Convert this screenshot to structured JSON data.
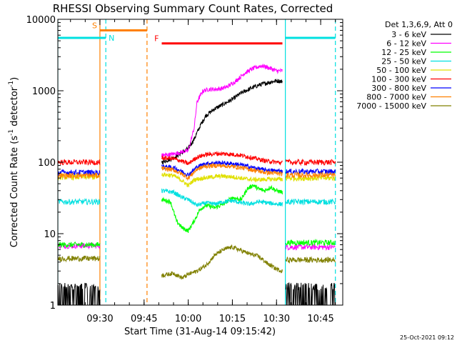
{
  "chart_data": {
    "type": "line",
    "title": "RHESSI Observing Summary Count Rates, Corrected",
    "xlabel": "Start Time (31-Aug-14 09:15:42)",
    "ylabel_main": "Corrected Count Rate (s",
    "ylabel_sup1": "-1",
    "ylabel_mid": " detector",
    "ylabel_sup2": "-1",
    "ylabel_end": ")",
    "footer": "25-Oct-2021 09:12",
    "legend_title": "Det 1,3,6,9, Att 0",
    "legend_position": "right",
    "y_scale": "log",
    "ylim": [
      1,
      10000
    ],
    "xlim": [
      "09:15:42",
      "10:52:30"
    ],
    "y_ticks": [
      {
        "value": 1,
        "label": "1"
      },
      {
        "value": 10,
        "label": "10"
      },
      {
        "value": 100,
        "label": "100"
      },
      {
        "value": 1000,
        "label": "1000"
      },
      {
        "value": 10000,
        "label": "10000"
      }
    ],
    "x_ticks": [
      {
        "value": "09:30",
        "label": "09:30"
      },
      {
        "value": "09:45",
        "label": "09:45"
      },
      {
        "value": "10:00",
        "label": "10:00"
      },
      {
        "value": "10:15",
        "label": "10:15"
      },
      {
        "value": "10:30",
        "label": "10:30"
      },
      {
        "value": "10:45",
        "label": "10:45"
      }
    ],
    "flags": [
      {
        "label": "S",
        "name": "saa",
        "start": "09:30:00",
        "end": "09:46:00",
        "level": 7000,
        "color": "#ff8000"
      },
      {
        "label": "N",
        "name": "night",
        "start": "09:15:42",
        "end": "09:32:00",
        "level": 5500,
        "color": "#00e0e0"
      },
      {
        "label": "F",
        "name": "flare",
        "start": "09:51:00",
        "end": "10:32:00",
        "level": 4600,
        "color": "#ff0000"
      },
      {
        "label": "",
        "name": "night-2",
        "start": "10:33:00",
        "end": "10:50:00",
        "level": 5500,
        "color": "#00e0e0"
      }
    ],
    "markers": [
      {
        "time": "09:15:42",
        "color": "#00e0e0",
        "style": "solid"
      },
      {
        "time": "09:30:00",
        "color": "#ff8000",
        "style": "solid"
      },
      {
        "time": "09:32:00",
        "color": "#00e0e0",
        "style": "dashed"
      },
      {
        "time": "09:46:00",
        "color": "#ff8000",
        "style": "dashed"
      },
      {
        "time": "10:33:00",
        "color": "#00e0e0",
        "style": "solid"
      },
      {
        "time": "10:50:00",
        "color": "#00e0e0",
        "style": "dashed"
      }
    ],
    "gaps": [
      [
        "09:30:00",
        "09:51:00"
      ],
      [
        "10:33:00",
        "10:33:00"
      ]
    ],
    "series": [
      {
        "name": "3 - 6 keV",
        "color": "#000000",
        "seg1": {
          "kind": "step",
          "level": 1.6
        },
        "pts": [
          [
            "09:51",
            100
          ],
          [
            "09:55",
            115
          ],
          [
            "10:00",
            155
          ],
          [
            "10:02",
            210
          ],
          [
            "10:04",
            320
          ],
          [
            "10:06",
            450
          ],
          [
            "10:09",
            560
          ],
          [
            "10:12",
            650
          ],
          [
            "10:15",
            760
          ],
          [
            "10:18",
            930
          ],
          [
            "10:21",
            1070
          ],
          [
            "10:24",
            1200
          ],
          [
            "10:27",
            1300
          ],
          [
            "10:30",
            1380
          ],
          [
            "10:32",
            1350
          ]
        ],
        "seg3": {
          "kind": "step",
          "level": 1.6
        }
      },
      {
        "name": "6 - 12 keV",
        "color": "#ff00ff",
        "seg1": {
          "kind": "flat",
          "level": 6.8
        },
        "pts": [
          [
            "09:51",
            125
          ],
          [
            "09:55",
            130
          ],
          [
            "09:58",
            140
          ],
          [
            "10:00",
            145
          ],
          [
            "10:02",
            300
          ],
          [
            "10:03",
            700
          ],
          [
            "10:05",
            1000
          ],
          [
            "10:07",
            1050
          ],
          [
            "10:09",
            1050
          ],
          [
            "10:11",
            1070
          ],
          [
            "10:13",
            1120
          ],
          [
            "10:16",
            1350
          ],
          [
            "10:19",
            1750
          ],
          [
            "10:22",
            2050
          ],
          [
            "10:25",
            2250
          ],
          [
            "10:28",
            2050
          ],
          [
            "10:30",
            1900
          ],
          [
            "10:32",
            1900
          ]
        ],
        "seg3": {
          "kind": "flat",
          "level": 6.5
        }
      },
      {
        "name": "12 - 25 keV",
        "color": "#00ff00",
        "seg1": {
          "kind": "flat",
          "level": 7.0
        },
        "pts": [
          [
            "09:51",
            30
          ],
          [
            "09:54",
            28
          ],
          [
            "09:56",
            15
          ],
          [
            "09:58",
            12
          ],
          [
            "10:00",
            11
          ],
          [
            "10:02",
            15
          ],
          [
            "10:04",
            22
          ],
          [
            "10:06",
            25
          ],
          [
            "10:09",
            23
          ],
          [
            "10:12",
            26
          ],
          [
            "10:15",
            32
          ],
          [
            "10:18",
            30
          ],
          [
            "10:20",
            42
          ],
          [
            "10:22",
            48
          ],
          [
            "10:24",
            42
          ],
          [
            "10:26",
            40
          ],
          [
            "10:28",
            45
          ],
          [
            "10:30",
            40
          ],
          [
            "10:32",
            38
          ]
        ],
        "seg3": {
          "kind": "flat",
          "level": 7.5
        }
      },
      {
        "name": "25 - 50 keV",
        "color": "#00e0e0",
        "seg1": {
          "kind": "flat",
          "level": 28
        },
        "pts": [
          [
            "09:51",
            40
          ],
          [
            "09:55",
            38
          ],
          [
            "09:58",
            32
          ],
          [
            "10:00",
            30
          ],
          [
            "10:03",
            25
          ],
          [
            "10:06",
            27
          ],
          [
            "10:09",
            26
          ],
          [
            "10:12",
            28
          ],
          [
            "10:15",
            29
          ],
          [
            "10:18",
            27
          ],
          [
            "10:21",
            26
          ],
          [
            "10:24",
            28
          ],
          [
            "10:27",
            27
          ],
          [
            "10:30",
            26
          ],
          [
            "10:32",
            26
          ]
        ],
        "seg3": {
          "kind": "flat",
          "level": 28
        }
      },
      {
        "name": "50 - 100 keV",
        "color": "#e0e000",
        "seg1": {
          "kind": "flat",
          "level": 62
        },
        "pts": [
          [
            "09:51",
            68
          ],
          [
            "09:55",
            65
          ],
          [
            "09:58",
            55
          ],
          [
            "10:00",
            47
          ],
          [
            "10:02",
            57
          ],
          [
            "10:05",
            60
          ],
          [
            "10:08",
            62
          ],
          [
            "10:11",
            64
          ],
          [
            "10:14",
            63
          ],
          [
            "10:17",
            61
          ],
          [
            "10:20",
            58
          ],
          [
            "10:24",
            57
          ],
          [
            "10:28",
            58
          ],
          [
            "10:32",
            58
          ]
        ],
        "seg3": {
          "kind": "flat",
          "level": 60
        }
      },
      {
        "name": "100 - 300 keV",
        "color": "#ff0000",
        "seg1": {
          "kind": "flat",
          "level": 100
        },
        "pts": [
          [
            "09:51",
            115
          ],
          [
            "09:55",
            112
          ],
          [
            "09:58",
            103
          ],
          [
            "10:00",
            95
          ],
          [
            "10:03",
            118
          ],
          [
            "10:06",
            128
          ],
          [
            "10:10",
            132
          ],
          [
            "10:14",
            130
          ],
          [
            "10:18",
            125
          ],
          [
            "10:22",
            115
          ],
          [
            "10:26",
            105
          ],
          [
            "10:30",
            100
          ],
          [
            "10:32",
            98
          ]
        ],
        "seg3": {
          "kind": "flat",
          "level": 100
        }
      },
      {
        "name": "300 - 800 keV",
        "color": "#0000ff",
        "seg1": {
          "kind": "flat",
          "level": 72
        },
        "pts": [
          [
            "09:51",
            88
          ],
          [
            "09:55",
            84
          ],
          [
            "09:58",
            74
          ],
          [
            "10:00",
            66
          ],
          [
            "10:03",
            86
          ],
          [
            "10:06",
            96
          ],
          [
            "10:10",
            98
          ],
          [
            "10:14",
            96
          ],
          [
            "10:18",
            92
          ],
          [
            "10:22",
            84
          ],
          [
            "10:26",
            78
          ],
          [
            "10:30",
            76
          ],
          [
            "10:32",
            75
          ]
        ],
        "seg3": {
          "kind": "flat",
          "level": 74
        }
      },
      {
        "name": "800 - 7000 keV",
        "color": "#ff8000",
        "seg1": {
          "kind": "flat",
          "level": 65
        },
        "pts": [
          [
            "09:51",
            82
          ],
          [
            "09:55",
            78
          ],
          [
            "09:58",
            68
          ],
          [
            "10:00",
            60
          ],
          [
            "10:03",
            80
          ],
          [
            "10:06",
            88
          ],
          [
            "10:10",
            90
          ],
          [
            "10:14",
            88
          ],
          [
            "10:18",
            84
          ],
          [
            "10:22",
            78
          ],
          [
            "10:26",
            72
          ],
          [
            "10:30",
            70
          ],
          [
            "10:32",
            68
          ]
        ],
        "seg3": {
          "kind": "flat",
          "level": 66
        }
      },
      {
        "name": "7000 - 15000 keV",
        "color": "#808000",
        "seg1": {
          "kind": "flat",
          "level": 4.5
        },
        "pts": [
          [
            "09:51",
            2.6
          ],
          [
            "09:55",
            2.8
          ],
          [
            "09:58",
            2.4
          ],
          [
            "10:00",
            2.7
          ],
          [
            "10:03",
            3.0
          ],
          [
            "10:06",
            3.6
          ],
          [
            "10:09",
            5.0
          ],
          [
            "10:12",
            6.0
          ],
          [
            "10:15",
            6.5
          ],
          [
            "10:18",
            5.8
          ],
          [
            "10:21",
            5.2
          ],
          [
            "10:24",
            4.8
          ],
          [
            "10:27",
            3.8
          ],
          [
            "10:30",
            3.2
          ],
          [
            "10:32",
            3.0
          ]
        ],
        "seg3": {
          "kind": "flat",
          "level": 4.3
        }
      }
    ]
  }
}
